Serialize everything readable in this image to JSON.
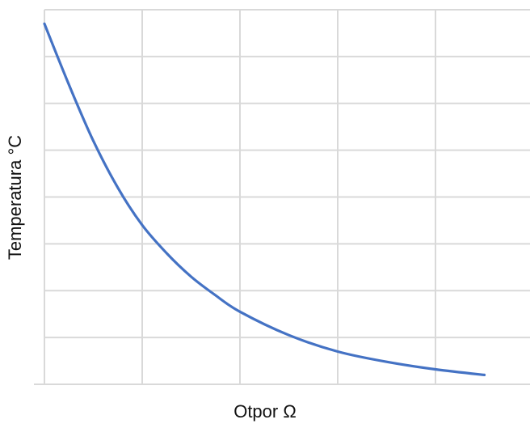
{
  "chart_data": {
    "type": "line",
    "title": "",
    "xlabel": "Otpor Ω",
    "ylabel": "Temperatura  °C",
    "x_tick_labels": [],
    "y_tick_labels": [],
    "grid": true,
    "legend": "none",
    "xlim": [
      0,
      5
    ],
    "ylim": [
      0,
      8
    ],
    "series": [
      {
        "name": "",
        "color": "#4472c4",
        "x": [
          0,
          0.25,
          0.5,
          0.75,
          1,
          1.25,
          1.5,
          1.75,
          2,
          2.5,
          3,
          3.5,
          4,
          4.5
        ],
        "y": [
          7.7,
          6.4,
          5.2,
          4.2,
          3.4,
          2.8,
          2.3,
          1.9,
          1.55,
          1.05,
          0.7,
          0.48,
          0.32,
          0.2
        ]
      }
    ]
  }
}
